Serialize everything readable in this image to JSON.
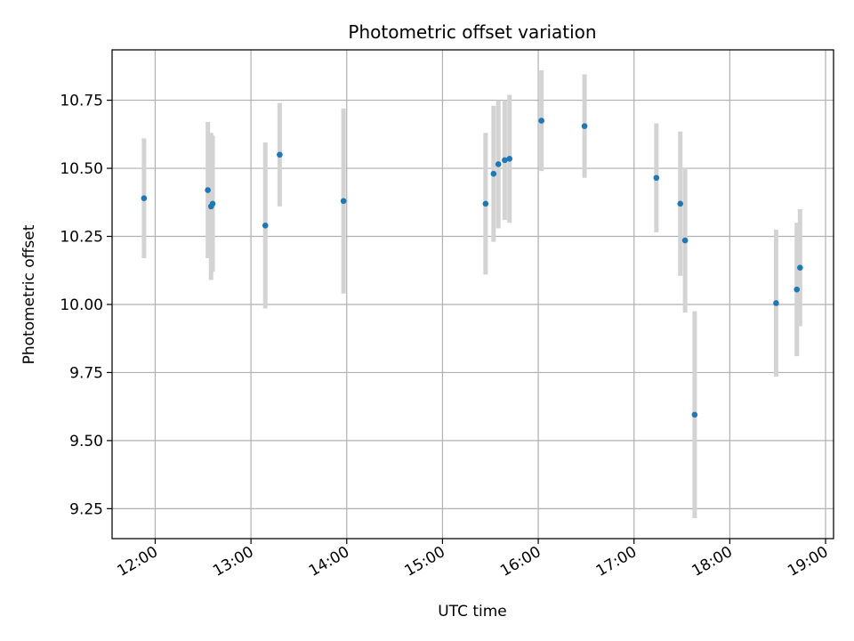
{
  "chart_data": {
    "type": "scatter",
    "title": "Photometric offset variation",
    "xlabel": "UTC time",
    "ylabel": "Photometric offset",
    "xlim": [
      "11:33",
      "19:05"
    ],
    "ylim": [
      9.14,
      10.935
    ],
    "grid": true,
    "x_ticks": [
      "12:00",
      "13:00",
      "14:00",
      "15:00",
      "16:00",
      "17:00",
      "18:00",
      "19:00"
    ],
    "y_ticks": [
      9.25,
      9.5,
      9.75,
      10.0,
      10.25,
      10.5,
      10.75
    ],
    "y_tick_labels": [
      "9.25",
      "9.50",
      "9.75",
      "10.00",
      "10.25",
      "10.50",
      "10.75"
    ],
    "colors": {
      "point": "#1f77b4",
      "errorbar": "#d3d3d3",
      "grid": "#b0b0b0"
    },
    "series": [
      {
        "points": [
          {
            "x": "11:53",
            "y": 10.39,
            "err": 0.22
          },
          {
            "x": "12:33",
            "y": 10.42,
            "err": 0.25
          },
          {
            "x": "12:35",
            "y": 10.36,
            "err": 0.27
          },
          {
            "x": "12:36",
            "y": 10.37,
            "err": 0.25
          },
          {
            "x": "13:09",
            "y": 10.29,
            "err": 0.305
          },
          {
            "x": "13:18",
            "y": 10.55,
            "err": 0.19
          },
          {
            "x": "13:58",
            "y": 10.38,
            "err": 0.34
          },
          {
            "x": "15:27",
            "y": 10.37,
            "err": 0.26
          },
          {
            "x": "15:32",
            "y": 10.48,
            "err": 0.25
          },
          {
            "x": "15:35",
            "y": 10.515,
            "err": 0.235
          },
          {
            "x": "15:39",
            "y": 10.53,
            "err": 0.22
          },
          {
            "x": "15:42",
            "y": 10.535,
            "err": 0.235
          },
          {
            "x": "16:02",
            "y": 10.675,
            "err": 0.185
          },
          {
            "x": "16:29",
            "y": 10.655,
            "err": 0.19
          },
          {
            "x": "17:14",
            "y": 10.465,
            "err": 0.2
          },
          {
            "x": "17:29",
            "y": 10.37,
            "err": 0.265
          },
          {
            "x": "17:32",
            "y": 10.235,
            "err": 0.265
          },
          {
            "x": "17:38",
            "y": 9.595,
            "err": 0.38
          },
          {
            "x": "18:29",
            "y": 10.005,
            "err": 0.27
          },
          {
            "x": "18:42",
            "y": 10.055,
            "err": 0.245
          },
          {
            "x": "18:44",
            "y": 10.135,
            "err": 0.215
          }
        ]
      }
    ]
  }
}
